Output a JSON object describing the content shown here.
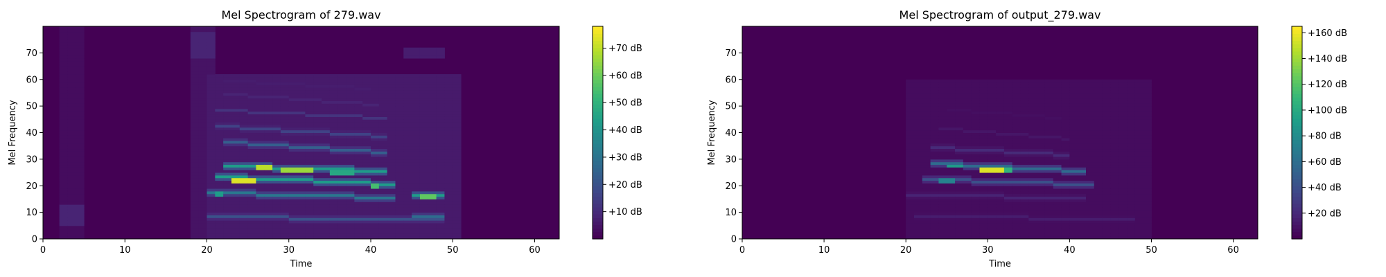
{
  "chart_data": [
    {
      "type": "heatmap",
      "title": "Mel Spectrogram of 279.wav",
      "xlabel": "Time",
      "ylabel": "Mel Frequency",
      "x_ticks": [
        0,
        10,
        20,
        30,
        40,
        50,
        60
      ],
      "y_ticks": [
        0,
        10,
        20,
        30,
        40,
        50,
        60,
        70
      ],
      "xlim": [
        0,
        63
      ],
      "ylim": [
        0,
        80
      ],
      "colormap": "viridis",
      "colorbar": {
        "range": [
          0,
          78
        ],
        "ticks": [
          10,
          20,
          30,
          40,
          50,
          60,
          70
        ],
        "tick_labels": [
          "+10 dB",
          "+20 dB",
          "+30 dB",
          "+40 dB",
          "+50 dB",
          "+60 dB",
          "+70 dB"
        ]
      },
      "regions": [
        {
          "t": [
            2,
            5
          ],
          "f": [
            5,
            13
          ],
          "level": 0.1
        },
        {
          "t": [
            2,
            5
          ],
          "f": [
            0,
            80
          ],
          "level": 0.03
        },
        {
          "t": [
            18.5,
            21
          ],
          "f": [
            68,
            78
          ],
          "level": 0.1
        },
        {
          "t": [
            18.5,
            21
          ],
          "f": [
            0,
            80
          ],
          "level": 0.05
        },
        {
          "t": [
            20,
            51
          ],
          "f": [
            0,
            62
          ],
          "level": 0.07
        },
        {
          "t": [
            44,
            49
          ],
          "f": [
            38,
            52
          ],
          "level": 0.07
        },
        {
          "t": [
            44,
            49
          ],
          "f": [
            68,
            72
          ],
          "level": 0.08
        }
      ],
      "harmonics": [
        {
          "t": [
            20,
            49
          ],
          "f0": 8,
          "f1": 6.5,
          "level": 0.25
        },
        {
          "t": [
            20,
            43
          ],
          "f0": 17,
          "f1": 15,
          "level": 0.4
        },
        {
          "t": [
            21,
            43
          ],
          "f0": 23,
          "f1": 20,
          "level": 0.55
        },
        {
          "t": [
            22,
            42
          ],
          "f0": 27,
          "f1": 25,
          "level": 0.55
        },
        {
          "t": [
            22,
            42
          ],
          "f0": 36,
          "f1": 32,
          "level": 0.3
        },
        {
          "t": [
            21,
            42
          ],
          "f0": 42,
          "f1": 38,
          "level": 0.2
        },
        {
          "t": [
            21,
            42
          ],
          "f0": 48,
          "f1": 45,
          "level": 0.15
        },
        {
          "t": [
            22,
            41
          ],
          "f0": 54,
          "f1": 50,
          "level": 0.1
        },
        {
          "t": [
            22,
            40
          ],
          "f0": 59,
          "f1": 56,
          "level": 0.08
        },
        {
          "t": [
            45,
            49
          ],
          "f0": 16,
          "f1": 16,
          "level": 0.55
        },
        {
          "t": [
            45,
            49
          ],
          "f0": 8,
          "f1": 8,
          "level": 0.35
        }
      ],
      "hotspots": [
        {
          "t": [
            23.5,
            25.5
          ],
          "f": [
            21.5,
            22.5
          ],
          "level": 0.95
        },
        {
          "t": [
            26,
            28
          ],
          "f": [
            26.5,
            27.5
          ],
          "level": 0.9
        },
        {
          "t": [
            29,
            33
          ],
          "f": [
            25.5,
            26.5
          ],
          "level": 0.85
        },
        {
          "t": [
            35,
            38
          ],
          "f": [
            24.5,
            25.5
          ],
          "level": 0.6
        },
        {
          "t": [
            40,
            41
          ],
          "f": [
            19.5,
            20.5
          ],
          "level": 0.7
        },
        {
          "t": [
            46,
            48
          ],
          "f": [
            15.5,
            16.5
          ],
          "level": 0.75
        },
        {
          "t": [
            21,
            22
          ],
          "f": [
            16.5,
            17.5
          ],
          "level": 0.55
        }
      ]
    },
    {
      "type": "heatmap",
      "title": "Mel Spectrogram of output_279.wav",
      "xlabel": "Time",
      "ylabel": "Mel Frequency",
      "x_ticks": [
        0,
        10,
        20,
        30,
        40,
        50,
        60
      ],
      "y_ticks": [
        0,
        10,
        20,
        30,
        40,
        50,
        60,
        70
      ],
      "xlim": [
        0,
        63
      ],
      "ylim": [
        0,
        80
      ],
      "colormap": "viridis",
      "colorbar": {
        "range": [
          0,
          165
        ],
        "ticks": [
          20,
          40,
          60,
          80,
          100,
          120,
          140,
          160
        ],
        "tick_labels": [
          "+20 dB",
          "+40 dB",
          "+60 dB",
          "+80 dB",
          "+100 dB",
          "+120 dB",
          "+140 dB",
          "+160 dB"
        ]
      },
      "regions": [
        {
          "t": [
            20,
            50
          ],
          "f": [
            0,
            60
          ],
          "level": 0.03
        }
      ],
      "harmonics": [
        {
          "t": [
            21,
            48
          ],
          "f0": 8,
          "f1": 7,
          "level": 0.08
        },
        {
          "t": [
            20,
            42
          ],
          "f0": 16,
          "f1": 15,
          "level": 0.1
        },
        {
          "t": [
            22,
            43
          ],
          "f0": 22,
          "f1": 20,
          "level": 0.25
        },
        {
          "t": [
            23,
            42
          ],
          "f0": 28,
          "f1": 25,
          "level": 0.35
        },
        {
          "t": [
            23,
            40
          ],
          "f0": 34,
          "f1": 31,
          "level": 0.12
        },
        {
          "t": [
            24,
            40
          ],
          "f0": 41,
          "f1": 37,
          "level": 0.06
        },
        {
          "t": [
            25,
            39
          ],
          "f0": 48,
          "f1": 45,
          "level": 0.04
        },
        {
          "t": [
            24,
            38
          ],
          "f0": 58,
          "f1": 56,
          "level": 0.03
        }
      ],
      "hotspots": [
        {
          "t": [
            29.5,
            31.5
          ],
          "f": [
            25.5,
            26.5
          ],
          "level": 0.95
        },
        {
          "t": [
            25,
            27
          ],
          "f": [
            27,
            28
          ],
          "level": 0.55
        },
        {
          "t": [
            32,
            33
          ],
          "f": [
            25.5,
            26.5
          ],
          "level": 0.65
        },
        {
          "t": [
            24,
            26
          ],
          "f": [
            21.5,
            22.5
          ],
          "level": 0.45
        }
      ]
    }
  ]
}
